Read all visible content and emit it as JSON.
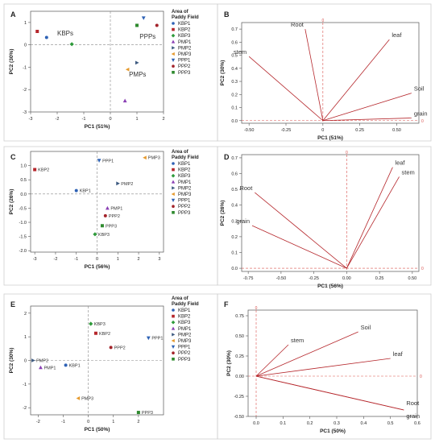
{
  "figure": {
    "legend_title": "Area of Paddy Field",
    "groups": [
      {
        "name": "KBP1",
        "color": "#2e62b5",
        "shape": "circle"
      },
      {
        "name": "KBP2",
        "color": "#b5262b",
        "shape": "square"
      },
      {
        "name": "KBP3",
        "color": "#2e9a3a",
        "shape": "diamond"
      },
      {
        "name": "PMP1",
        "color": "#8a3fb4",
        "shape": "triangle-up"
      },
      {
        "name": "PMP2",
        "color": "#3d5a80",
        "shape": "triangle-right"
      },
      {
        "name": "PMP3",
        "color": "#e69a2e",
        "shape": "triangle-left"
      },
      {
        "name": "PPP1",
        "color": "#2e62b5",
        "shape": "triangle-down"
      },
      {
        "name": "PPP2",
        "color": "#a3232a",
        "shape": "circle"
      },
      {
        "name": "PPP3",
        "color": "#2e8a2e",
        "shape": "square"
      }
    ]
  },
  "chart_data": [
    {
      "panel": "A",
      "type": "scatter",
      "xlabel": "PC1 (51%)",
      "ylabel": "PC2 (30%)",
      "xlim": [
        -3,
        2
      ],
      "ylim": [
        -3,
        1.5
      ],
      "xticks": [
        -3,
        -2,
        -1,
        0,
        1,
        2
      ],
      "yticks": [
        -3,
        -2,
        -1,
        0,
        1
      ],
      "point_labels": false,
      "annotations": [
        {
          "text": "KBPs",
          "x": -2.0,
          "y": 0.42
        },
        {
          "text": "PPPs",
          "x": 1.1,
          "y": 0.28
        },
        {
          "text": "PMPs",
          "x": 0.7,
          "y": -1.42
        }
      ],
      "points": [
        {
          "group": "KBP1",
          "x": -2.4,
          "y": 0.33
        },
        {
          "group": "KBP2",
          "x": -2.75,
          "y": 0.6
        },
        {
          "group": "KBP3",
          "x": -1.45,
          "y": 0.03
        },
        {
          "group": "PMP1",
          "x": 0.55,
          "y": -2.5
        },
        {
          "group": "PMP2",
          "x": 1.0,
          "y": -0.8
        },
        {
          "group": "PMP3",
          "x": 0.65,
          "y": -1.1
        },
        {
          "group": "PPP1",
          "x": 1.25,
          "y": 1.2
        },
        {
          "group": "PPP2",
          "x": 1.75,
          "y": 0.87
        },
        {
          "group": "PPP3",
          "x": 1.0,
          "y": 0.87
        }
      ]
    },
    {
      "panel": "B",
      "type": "line",
      "xlabel": "PC1 (51%)",
      "ylabel": "PC2 (30%)",
      "xlim": [
        -0.55,
        0.65
      ],
      "ylim": [
        -0.02,
        0.75
      ],
      "xticks": [
        -0.5,
        -0.25,
        0,
        0.25,
        0.5
      ],
      "yticks": [
        0,
        0.1,
        0.2,
        0.3,
        0.4,
        0.5,
        0.6,
        0.7
      ],
      "xticklabels": [
        "-0.50",
        "-0.25",
        "0",
        "0.25",
        "0.50"
      ],
      "yticklabels": [
        "0.0",
        "0.1",
        "0.2",
        "0.3",
        "0.4",
        "0.5",
        "0.6",
        "0.7"
      ],
      "origin_label": "0",
      "vectors": [
        {
          "name": "stem",
          "x": -0.5,
          "y": 0.49
        },
        {
          "name": "Root",
          "x": -0.12,
          "y": 0.7
        },
        {
          "name": "leaf",
          "x": 0.45,
          "y": 0.62
        },
        {
          "name": "Soil",
          "x": 0.6,
          "y": 0.21
        },
        {
          "name": "grain",
          "x": 0.6,
          "y": 0.02
        }
      ]
    },
    {
      "panel": "C",
      "type": "scatter",
      "xlabel": "PC1 (56%)",
      "ylabel": "PC2 (26%)",
      "xlim": [
        -3.2,
        3.2
      ],
      "ylim": [
        -2.05,
        1.5
      ],
      "xticks": [
        -3,
        -2,
        -1,
        0,
        1,
        2,
        3
      ],
      "yticks": [
        -2,
        -1.5,
        -1,
        -0.5,
        0,
        0.5,
        1
      ],
      "xticklabels": [
        "-3",
        "-2",
        "-1",
        "0",
        "1",
        "2",
        "3"
      ],
      "yticklabels": [
        "-2.0",
        "-1.5",
        "-1.0",
        "-0.5",
        "0.0",
        "0.5",
        "1.0"
      ],
      "point_labels": true,
      "points": [
        {
          "group": "KBP1",
          "x": -1.0,
          "y": 0.12
        },
        {
          "group": "KBP2",
          "x": -3.0,
          "y": 0.86
        },
        {
          "group": "KBP3",
          "x": -0.1,
          "y": -1.42
        },
        {
          "group": "PMP1",
          "x": 0.5,
          "y": -0.5
        },
        {
          "group": "PMP2",
          "x": 1.0,
          "y": 0.37
        },
        {
          "group": "PMP3",
          "x": 2.3,
          "y": 1.28
        },
        {
          "group": "PPP1",
          "x": 0.1,
          "y": 1.18
        },
        {
          "group": "PPP2",
          "x": 0.4,
          "y": -0.77
        },
        {
          "group": "PPP3",
          "x": 0.25,
          "y": -1.12
        }
      ]
    },
    {
      "panel": "D",
      "type": "line",
      "xlabel": "PC1 (56%)",
      "ylabel": "PC2 (26%)",
      "xlim": [
        -0.8,
        0.55
      ],
      "ylim": [
        -0.02,
        0.72
      ],
      "xticks": [
        -0.75,
        -0.5,
        -0.25,
        0,
        0.25,
        0.5
      ],
      "yticks": [
        0,
        0.1,
        0.2,
        0.3,
        0.4,
        0.5,
        0.6,
        0.7
      ],
      "xticklabels": [
        "-0.75",
        "-0.50",
        "-0.25",
        "0.00",
        "0.25",
        "0.50"
      ],
      "yticklabels": [
        "0.0",
        "0.1",
        "0.2",
        "0.3",
        "0.4",
        "0.5",
        "0.6",
        "0.7"
      ],
      "origin_label": "0",
      "vectors": [
        {
          "name": "Root",
          "x": -0.7,
          "y": 0.48
        },
        {
          "name": "grain",
          "x": -0.72,
          "y": 0.27
        },
        {
          "name": "leaf",
          "x": 0.35,
          "y": 0.64
        },
        {
          "name": "stem",
          "x": 0.4,
          "y": 0.58
        }
      ]
    },
    {
      "panel": "E",
      "type": "scatter",
      "xlabel": "PC1 (50%)",
      "ylabel": "PC2 (30%)",
      "xlim": [
        -2.3,
        3.0
      ],
      "ylim": [
        -2.3,
        2.3
      ],
      "xticks": [
        -2,
        -1,
        0,
        1,
        2
      ],
      "yticks": [
        -2,
        -1,
        0,
        1,
        2
      ],
      "point_labels": true,
      "points": [
        {
          "group": "KBP1",
          "x": -0.9,
          "y": -0.2
        },
        {
          "group": "KBP2",
          "x": 0.3,
          "y": 1.15
        },
        {
          "group": "KBP3",
          "x": 0.1,
          "y": 1.55
        },
        {
          "group": "PMP1",
          "x": -1.9,
          "y": -0.3
        },
        {
          "group": "PMP2",
          "x": -2.2,
          "y": 0.0
        },
        {
          "group": "PMP3",
          "x": -0.4,
          "y": -1.6
        },
        {
          "group": "PPP1",
          "x": 2.4,
          "y": 0.95
        },
        {
          "group": "PPP2",
          "x": 0.9,
          "y": 0.55
        },
        {
          "group": "PPP3",
          "x": 2.0,
          "y": -2.2
        }
      ]
    },
    {
      "panel": "F",
      "type": "line",
      "xlabel": "PC1 (50%)",
      "ylabel": "PC2 (30%)",
      "xlim": [
        -0.03,
        0.6
      ],
      "ylim": [
        -0.5,
        0.82
      ],
      "xticks": [
        0,
        0.1,
        0.2,
        0.3,
        0.4,
        0.5,
        0.6
      ],
      "yticks": [
        -0.5,
        -0.25,
        0,
        0.25,
        0.5,
        0.75
      ],
      "xticklabels": [
        "0.0",
        "0.1",
        "0.2",
        "0.3",
        "0.4",
        "0.5",
        "0.6"
      ],
      "yticklabels": [
        "-0.50",
        "-0.25",
        "0.00",
        "0.25",
        "0.50",
        "0.75"
      ],
      "origin_label": "0",
      "vectors": [
        {
          "name": "stem",
          "x": 0.12,
          "y": 0.39
        },
        {
          "name": "Soil",
          "x": 0.38,
          "y": 0.55
        },
        {
          "name": "leaf",
          "x": 0.5,
          "y": 0.22
        },
        {
          "name": "Root",
          "x": 0.55,
          "y": -0.42
        },
        {
          "name": "grain",
          "x": 0.55,
          "y": -0.42
        }
      ]
    }
  ]
}
